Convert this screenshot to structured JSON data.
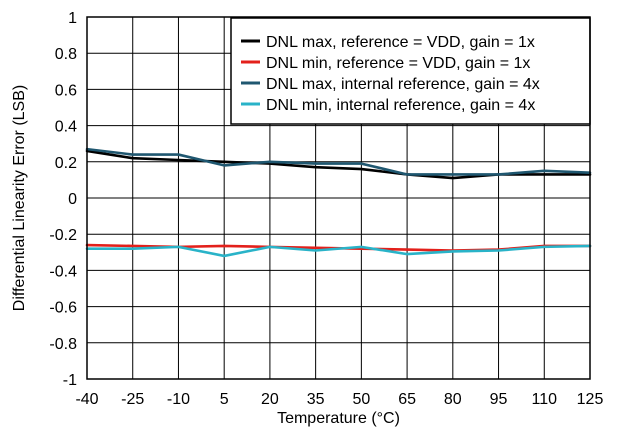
{
  "chart_data": {
    "type": "line",
    "xlabel": "Temperature (°C)",
    "ylabel": "Differential Linearity Error (LSB)",
    "xlim": [
      -40,
      125
    ],
    "ylim": [
      -1,
      1
    ],
    "x_ticks": [
      -40,
      -25,
      -10,
      5,
      20,
      35,
      50,
      65,
      80,
      95,
      110,
      125
    ],
    "y_ticks": [
      -1,
      -0.8,
      -0.6,
      -0.4,
      -0.2,
      0,
      0.2,
      0.4,
      0.6,
      0.8,
      1
    ],
    "x_tick_labels": [
      "-40",
      "-25",
      "-10",
      "5",
      "20",
      "35",
      "50",
      "65",
      "80",
      "95",
      "110",
      "125"
    ],
    "y_tick_labels": [
      "-1",
      "-0.8",
      "-0.6",
      "-0.4",
      "-0.2",
      "0",
      "0.2",
      "0.4",
      "0.6",
      "0.8",
      "1"
    ],
    "x": [
      -40,
      -25,
      -10,
      5,
      20,
      35,
      50,
      65,
      80,
      95,
      110,
      125
    ],
    "grid": true,
    "legend_position": "top-right",
    "series": [
      {
        "name": "DNL max, reference = VDD, gain = 1x",
        "color": "#000000",
        "values": [
          0.26,
          0.22,
          0.21,
          0.2,
          0.19,
          0.17,
          0.16,
          0.13,
          0.11,
          0.13,
          0.13,
          0.13
        ]
      },
      {
        "name": "DNL min, reference = VDD, gain = 1x",
        "color": "#e3201b",
        "values": [
          -0.26,
          -0.265,
          -0.27,
          -0.265,
          -0.27,
          -0.275,
          -0.28,
          -0.285,
          -0.29,
          -0.285,
          -0.265,
          -0.265
        ]
      },
      {
        "name": "DNL max, internal reference, gain = 4x",
        "color": "#1f5770",
        "values": [
          0.27,
          0.24,
          0.24,
          0.18,
          0.2,
          0.19,
          0.19,
          0.13,
          0.13,
          0.13,
          0.15,
          0.14
        ]
      },
      {
        "name": "DNL min, internal reference, gain = 4x",
        "color": "#29b3c8",
        "values": [
          -0.28,
          -0.28,
          -0.27,
          -0.32,
          -0.27,
          -0.29,
          -0.27,
          -0.31,
          -0.295,
          -0.29,
          -0.27,
          -0.265
        ]
      }
    ]
  }
}
